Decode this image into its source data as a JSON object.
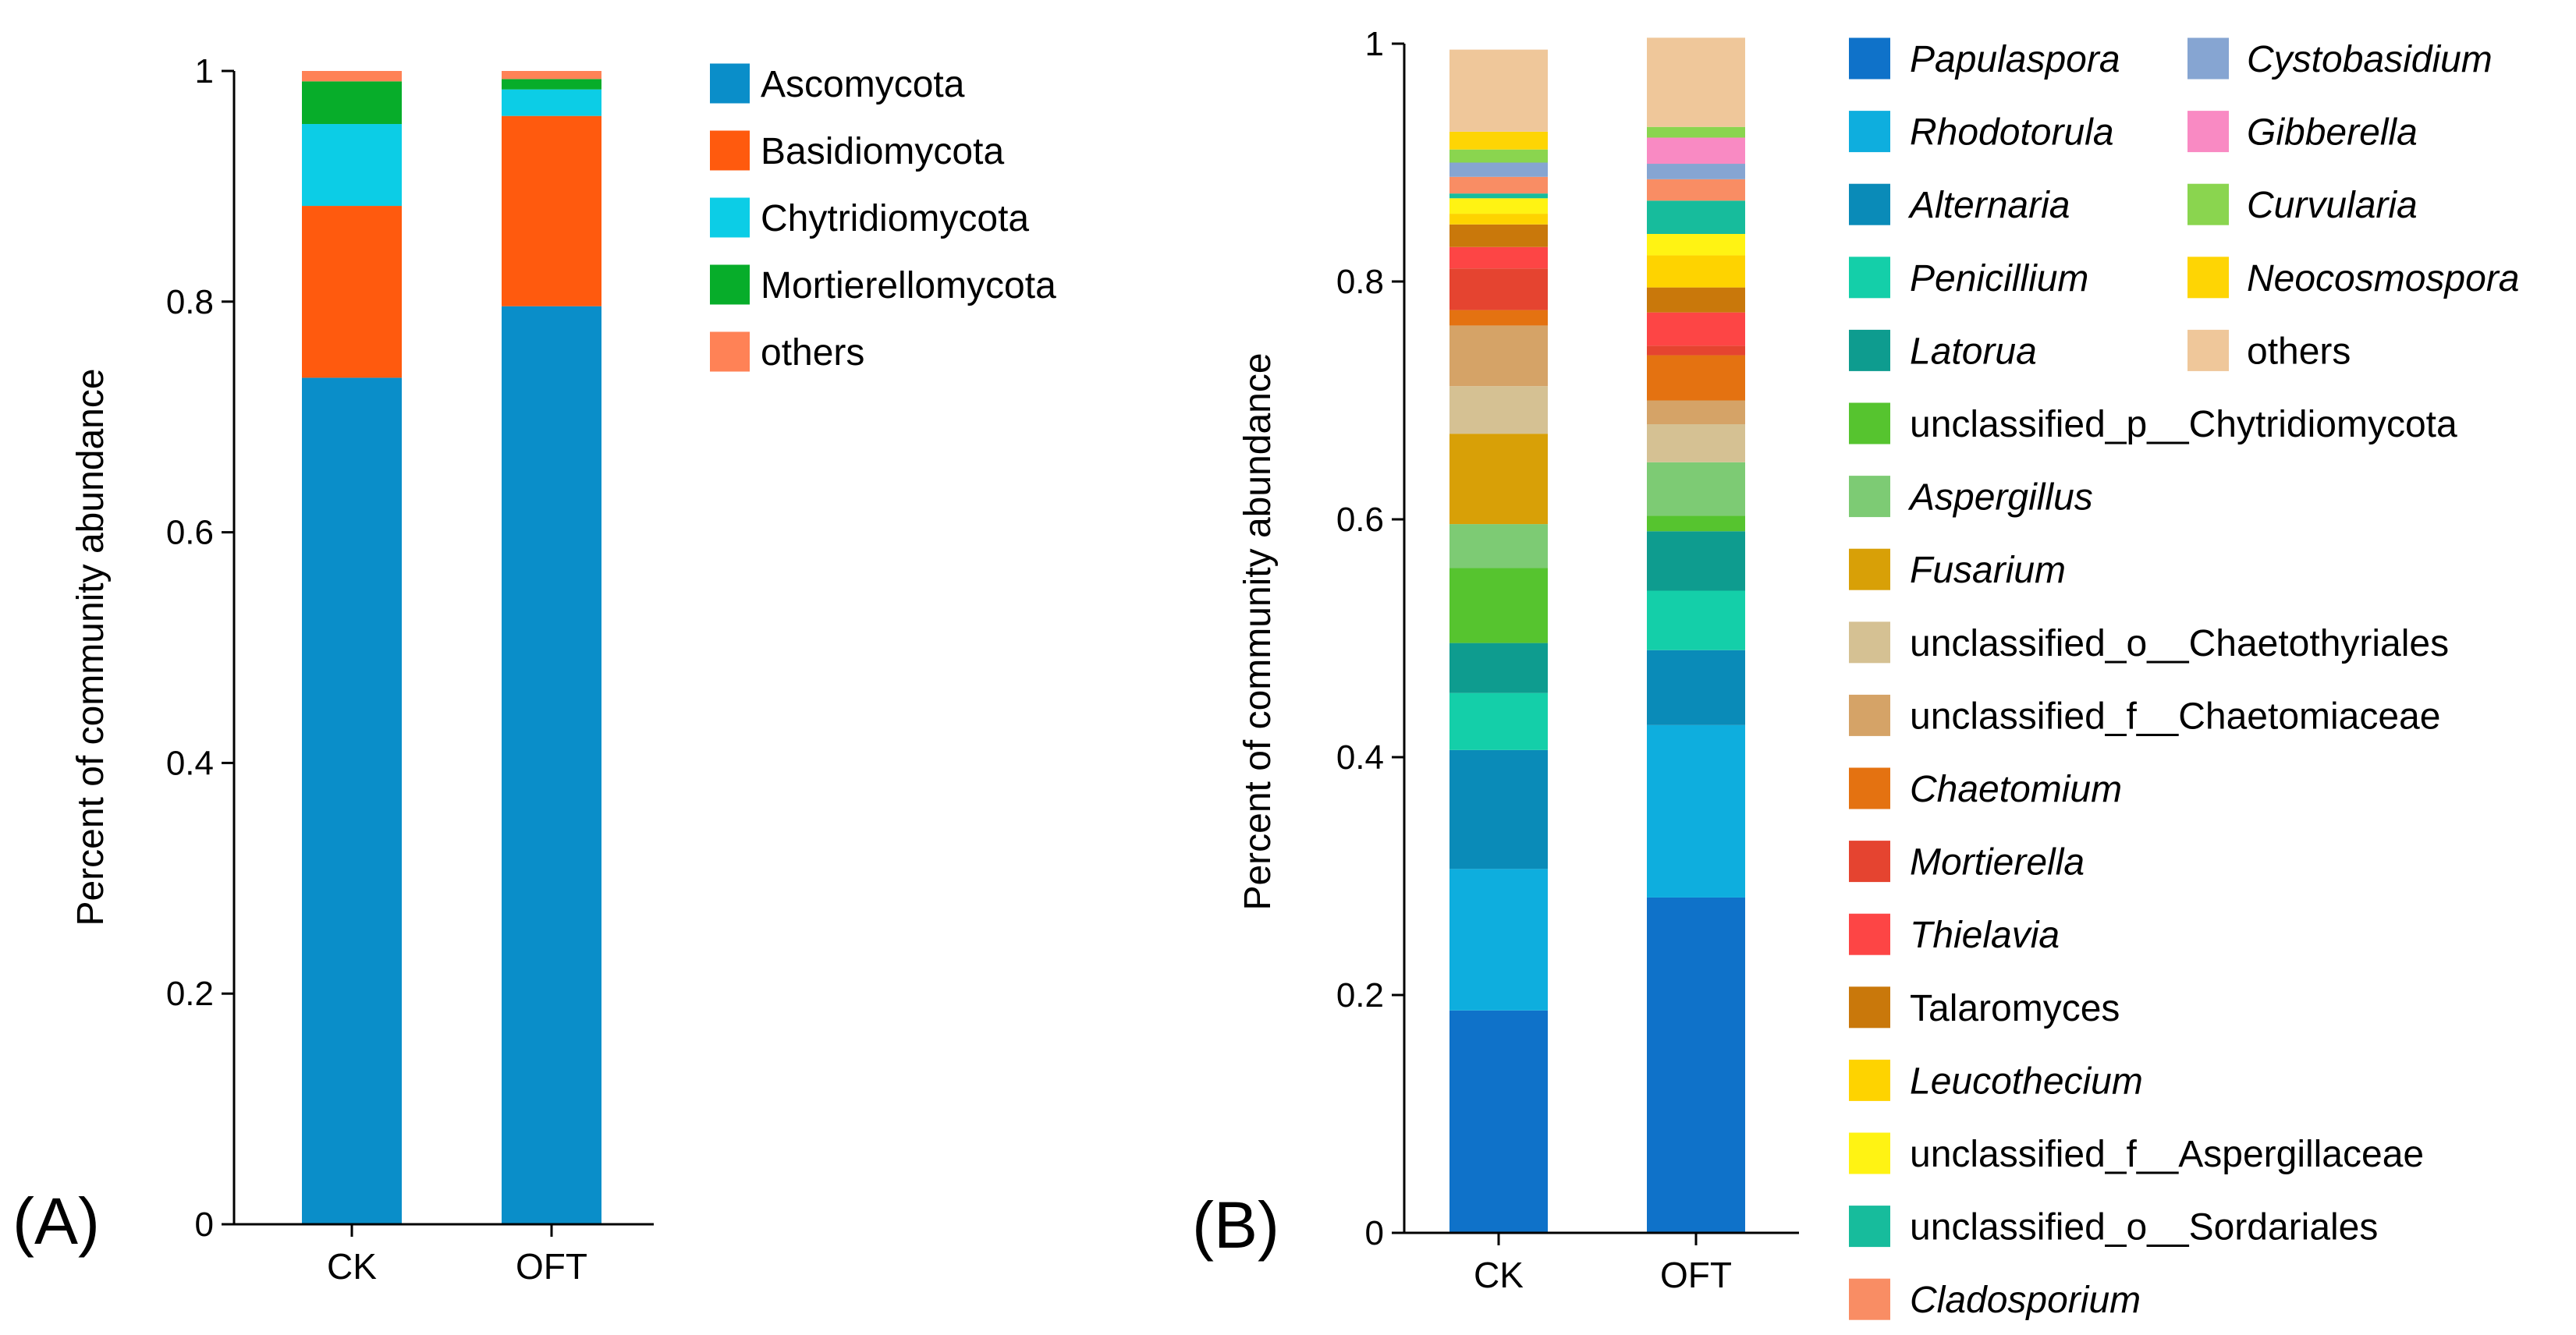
{
  "chart_data": [
    {
      "type": "bar",
      "stacked": true,
      "panel_label": "(A)",
      "title": "",
      "xlabel": "",
      "ylabel": "Percent of community abundance",
      "ylim": [
        0,
        1
      ],
      "yticks": [
        "0",
        "0.2",
        "0.4",
        "0.6",
        "0.8",
        "1"
      ],
      "categories": [
        "CK",
        "OFT"
      ],
      "legend_position": "right",
      "series": [
        {
          "name": "Ascomycota",
          "color": "#0a8ec9",
          "italic": false,
          "values": [
            0.734,
            0.796
          ]
        },
        {
          "name": "Basidiomycota",
          "color": "#ff5a0e",
          "italic": false,
          "values": [
            0.149,
            0.165
          ]
        },
        {
          "name": "Chytridiomycota",
          "color": "#0ccde6",
          "italic": false,
          "values": [
            0.071,
            0.023
          ]
        },
        {
          "name": "Mortierellomycota",
          "color": "#07ad2a",
          "italic": false,
          "values": [
            0.037,
            0.009
          ]
        },
        {
          "name": "others",
          "color": "#ff8256",
          "italic": false,
          "values": [
            0.009,
            0.007
          ]
        }
      ]
    },
    {
      "type": "bar",
      "stacked": true,
      "panel_label": "(B)",
      "title": "",
      "xlabel": "",
      "ylabel": "Percent of community abundance",
      "ylim": [
        0,
        1
      ],
      "yticks": [
        "0",
        "0.2",
        "0.4",
        "0.6",
        "0.8",
        "1"
      ],
      "categories": [
        "CK",
        "OFT"
      ],
      "legend_position": "right",
      "series": [
        {
          "name": "Papulaspora",
          "color": "#0f72c9",
          "italic": true,
          "values": [
            0.187,
            0.282
          ]
        },
        {
          "name": "Rhodotorula",
          "color": "#0eaede",
          "italic": true,
          "values": [
            0.119,
            0.145
          ]
        },
        {
          "name": "Alternaria",
          "color": "#0a8bb8",
          "italic": true,
          "values": [
            0.1,
            0.063
          ]
        },
        {
          "name": "Penicillium",
          "color": "#14cfa9",
          "italic": true,
          "values": [
            0.048,
            0.05
          ]
        },
        {
          "name": "Latorua",
          "color": "#0e9c8f",
          "italic": true,
          "values": [
            0.042,
            0.05
          ]
        },
        {
          "name": "unclassified_p__Chytridiomycota",
          "color": "#56c42f",
          "italic": false,
          "values": [
            0.063,
            0.013
          ]
        },
        {
          "name": "Aspergillus",
          "color": "#7dcb74",
          "italic": true,
          "values": [
            0.037,
            0.045
          ]
        },
        {
          "name": "Fusarium",
          "color": "#d8a007",
          "italic": true,
          "values": [
            0.076,
            0.0
          ]
        },
        {
          "name": "unclassified_o__Chaetothyriales",
          "color": "#d5c193",
          "italic": false,
          "values": [
            0.04,
            0.032
          ]
        },
        {
          "name": "unclassified_f__Chaetomiaceae",
          "color": "#d5a367",
          "italic": false,
          "values": [
            0.051,
            0.02
          ]
        },
        {
          "name": "Chaetomium",
          "color": "#e47211",
          "italic": true,
          "values": [
            0.013,
            0.038
          ]
        },
        {
          "name": "Mortierella",
          "color": "#e54430",
          "italic": true,
          "values": [
            0.035,
            0.008
          ]
        },
        {
          "name": "Thielavia",
          "color": "#fd4545",
          "italic": true,
          "values": [
            0.018,
            0.028
          ]
        },
        {
          "name": "Talaromyces",
          "color": "#c9780b",
          "italic": false,
          "values": [
            0.019,
            0.021
          ]
        },
        {
          "name": "Leucothecium",
          "color": "#fed300",
          "italic": true,
          "values": [
            0.009,
            0.027
          ]
        },
        {
          "name": "unclassified_f__Aspergillaceae",
          "color": "#fff313",
          "italic": false,
          "values": [
            0.013,
            0.018
          ]
        },
        {
          "name": "unclassified_o__Sordariales",
          "color": "#17bc9c",
          "italic": false,
          "values": [
            0.004,
            0.028
          ]
        },
        {
          "name": "Cladosporium",
          "color": "#f98d64",
          "italic": true,
          "values": [
            0.014,
            0.018
          ]
        },
        {
          "name": "Cystobasidium",
          "color": "#86a5d2",
          "italic": true,
          "values": [
            0.012,
            0.013
          ]
        },
        {
          "name": "Gibberella",
          "color": "#f98ac3",
          "italic": true,
          "values": [
            0.0,
            0.022
          ]
        },
        {
          "name": "Curvularia",
          "color": "#8ad54f",
          "italic": true,
          "values": [
            0.011,
            0.009
          ]
        },
        {
          "name": "Neocosmospora",
          "color": "#fed504",
          "italic": true,
          "values": [
            0.015,
            0.0
          ]
        },
        {
          "name": "others",
          "color": "#efc79a",
          "italic": false,
          "values": [
            0.069,
            0.075
          ]
        }
      ]
    }
  ]
}
